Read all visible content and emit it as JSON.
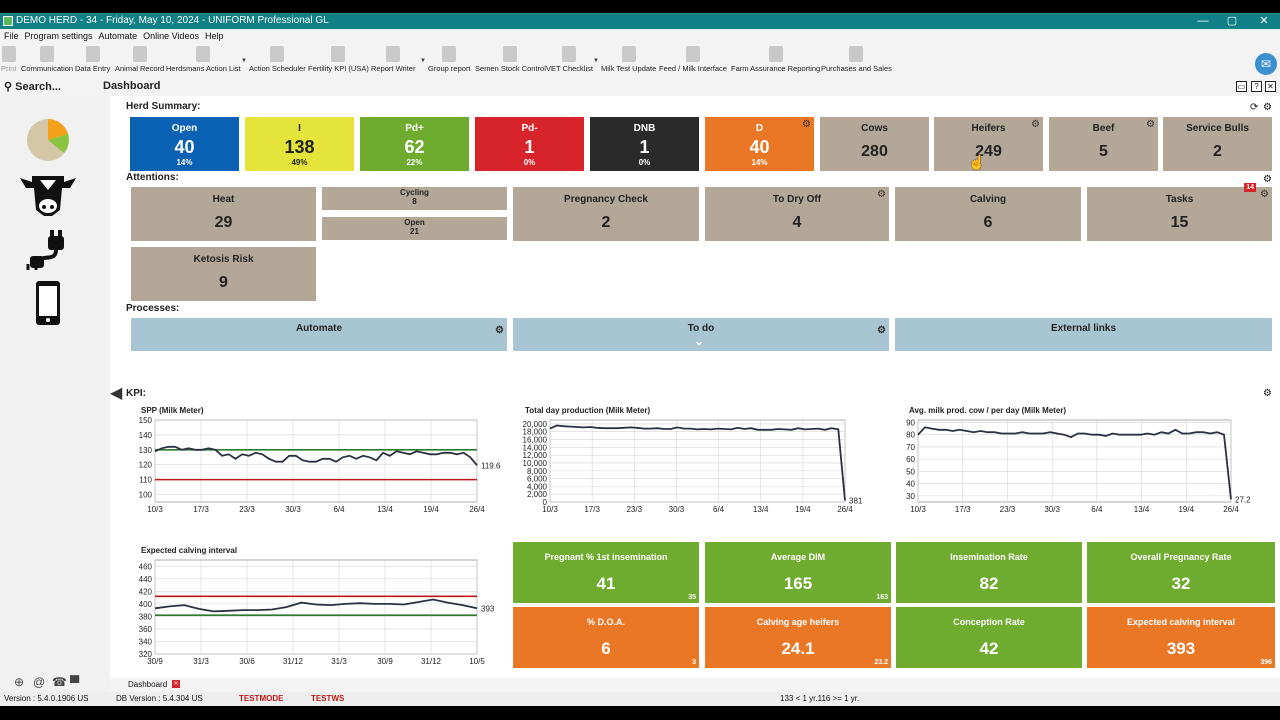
{
  "window": {
    "title": "DEMO HERD - 34 - Friday, May 10, 2024 - UNIFORM Professional GL",
    "controls": [
      "—",
      "▢",
      "❐",
      "✕"
    ]
  },
  "menu": [
    "File",
    "Program settings",
    "Automate",
    "Online Videos",
    "Help"
  ],
  "toolbar": [
    {
      "label": "Print",
      "icon": "printer-icon"
    },
    {
      "label": "Communication",
      "icon": "antenna-icon"
    },
    {
      "label": "Data Entry",
      "icon": "cow-icon"
    },
    {
      "label": "Animal Record",
      "icon": "cow-record-icon"
    },
    {
      "label": "Herdsmans Action List",
      "icon": "document-icon"
    },
    {
      "label": "Action Scheduler",
      "icon": "clock-icon"
    },
    {
      "label": "Fertility KPI (USA)",
      "icon": "heart-icon"
    },
    {
      "label": "Report Writer",
      "icon": "printer-icon"
    },
    {
      "label": "Group report",
      "icon": "group-icon"
    },
    {
      "label": "Semen Stock Control",
      "icon": "canister-icon"
    },
    {
      "label": "VET Checklist",
      "icon": "vet-icon"
    },
    {
      "label": "Milk Test Update",
      "icon": "milk-icon"
    },
    {
      "label": "Feed / Milk Interface",
      "icon": "feed-icon"
    },
    {
      "label": "Farm Assurance Reporting",
      "icon": "farm-icon"
    },
    {
      "label": "Purchases and Sales",
      "icon": "trade-icon"
    }
  ],
  "search": {
    "label": "Search..."
  },
  "page_title": "Dashboard",
  "sections": {
    "herd": "Herd Summary:",
    "attentions": "Attentions:",
    "processes": "Processes:",
    "kpi": "KPI:"
  },
  "herd_tiles": [
    {
      "title": "Open",
      "value": "40",
      "pct": "14%",
      "color": "#0b62b5"
    },
    {
      "title": "I",
      "value": "138",
      "pct": "49%",
      "color": "#e4e43a"
    },
    {
      "title": "Pd+",
      "value": "62",
      "pct": "22%",
      "color": "#6fab2e"
    },
    {
      "title": "Pd-",
      "value": "1",
      "pct": "0%",
      "color": "#d7242a"
    },
    {
      "title": "DNB",
      "value": "1",
      "pct": "0%",
      "color": "#2a2a2a"
    },
    {
      "title": "D",
      "value": "40",
      "pct": "14%",
      "color": "#e97726"
    },
    {
      "title": "Cows",
      "value": "280"
    },
    {
      "title": "Heifers",
      "value": "249"
    },
    {
      "title": "Beef",
      "value": "5"
    },
    {
      "title": "Service Bulls",
      "value": "2"
    }
  ],
  "attentions": {
    "heat": {
      "title": "Heat",
      "value": "29"
    },
    "cycling": {
      "title": "Cycling",
      "value": "8"
    },
    "open": {
      "title": "Open",
      "value": "21"
    },
    "pregnancy_check": {
      "title": "Pregnancy Check",
      "value": "2"
    },
    "to_dry_off": {
      "title": "To Dry Off",
      "value": "4"
    },
    "calving": {
      "title": "Calving",
      "value": "6"
    },
    "tasks": {
      "title": "Tasks",
      "value": "15",
      "badge": "14"
    },
    "ketosis": {
      "title": "Ketosis Risk",
      "value": "9"
    }
  },
  "processes": [
    "Automate",
    "To do",
    "External links"
  ],
  "kpi_tiles": [
    {
      "title": "Pregnant % 1st insemination",
      "value": "41",
      "sub": "35",
      "color": "green"
    },
    {
      "title": "Average DIM",
      "value": "165",
      "sub": "163",
      "color": "green"
    },
    {
      "title": "Insemination Rate",
      "value": "82",
      "sub": "",
      "color": "green"
    },
    {
      "title": "Overall Pregnancy Rate",
      "value": "32",
      "sub": "",
      "color": "green"
    },
    {
      "title": "% D.O.A.",
      "value": "6",
      "sub": "3",
      "color": "orange"
    },
    {
      "title": "Calving age heifers",
      "value": "24.1",
      "sub": "23.2",
      "color": "orange"
    },
    {
      "title": "Conception Rate",
      "value": "42",
      "sub": "",
      "color": "green"
    },
    {
      "title": "Expected calving interval",
      "value": "393",
      "sub": "396",
      "color": "orange"
    }
  ],
  "chart_data": [
    {
      "type": "line",
      "title": "SPP (Milk Meter)",
      "ylim": [
        95,
        150
      ],
      "yticks": [
        100,
        110,
        120,
        130,
        140,
        150
      ],
      "xticks": [
        "10/3",
        "17/3",
        "23/3",
        "30/3",
        "6/4",
        "13/4",
        "19/4",
        "26/4"
      ],
      "values": [
        129,
        131,
        132,
        132,
        130,
        131,
        130,
        130,
        131,
        130,
        126,
        127,
        124,
        127,
        126,
        128,
        127,
        124,
        122,
        122,
        126,
        126,
        123,
        122,
        122,
        124,
        124,
        122,
        125,
        126,
        124,
        126,
        125,
        123,
        128,
        126,
        129,
        128,
        127,
        129,
        128,
        127,
        127,
        128,
        128,
        127,
        128,
        125,
        119.6
      ],
      "reference_lines": [
        {
          "value": 130,
          "color": "#2f7a2f"
        },
        {
          "value": 110,
          "color": "#c01818"
        }
      ],
      "end_label": "119.6"
    },
    {
      "type": "line",
      "title": "Total day production (Milk Meter)",
      "ylim": [
        0,
        21000
      ],
      "yticks": [
        0,
        2000,
        4000,
        6000,
        8000,
        10000,
        12000,
        14000,
        16000,
        18000,
        20000
      ],
      "ytick_labels": [
        "0",
        "2,000",
        "4,000",
        "6,000",
        "8,000",
        "10,000",
        "12,000",
        "14,000",
        "16,000",
        "18,000",
        "20,000"
      ],
      "xticks": [
        "10/3",
        "17/3",
        "23/3",
        "30/3",
        "6/4",
        "13/4",
        "19/4",
        "26/4"
      ],
      "values": [
        18800,
        19600,
        19400,
        19300,
        19200,
        19100,
        19200,
        19000,
        18900,
        18900,
        18900,
        19000,
        19100,
        19000,
        18800,
        18800,
        18900,
        18700,
        18700,
        19100,
        18800,
        18800,
        18600,
        18700,
        18600,
        18800,
        18700,
        18600,
        19000,
        18700,
        18900,
        18500,
        18500,
        18500,
        18700,
        18600,
        18500,
        18900,
        18600,
        18700,
        18800,
        18500,
        18900,
        18600,
        381
      ],
      "end_label": "381"
    },
    {
      "type": "line",
      "title": "Avg. milk prod. cow / per day (Milk Meter)",
      "ylim": [
        25,
        92
      ],
      "yticks": [
        30,
        40,
        50,
        60,
        70,
        80,
        90
      ],
      "xticks": [
        "10/3",
        "17/3",
        "23/3",
        "30/3",
        "6/4",
        "13/4",
        "19/4",
        "26/4"
      ],
      "values": [
        80,
        86,
        85,
        84,
        84,
        83,
        84,
        83,
        82,
        83,
        82,
        82,
        81,
        81,
        81,
        82,
        81,
        81,
        81,
        82,
        81,
        80,
        78,
        81,
        81,
        80,
        80,
        79,
        81,
        80,
        80,
        80,
        80,
        81,
        80,
        82,
        81,
        84,
        81,
        81,
        82,
        82,
        81,
        82,
        80,
        27.2
      ],
      "end_label": "27.2"
    },
    {
      "type": "line",
      "title": "Expected calving interval",
      "ylim": [
        320,
        470
      ],
      "yticks": [
        320,
        340,
        360,
        380,
        400,
        420,
        440,
        460
      ],
      "xticks": [
        "30/9",
        "31/3",
        "30/6",
        "31/12",
        "31/3",
        "30/9",
        "31/12",
        "10/5"
      ],
      "values": [
        393,
        396,
        398,
        392,
        388,
        389,
        390,
        390,
        391,
        395,
        402,
        399,
        398,
        400,
        401,
        400,
        400,
        399,
        403,
        407,
        402,
        398,
        393
      ],
      "reference_lines": [
        {
          "value": 412,
          "color": "#c01818"
        },
        {
          "value": 382,
          "color": "#2f7a2f"
        }
      ],
      "end_label": "393"
    }
  ],
  "bottom_tab": "Dashboard",
  "status": {
    "version": "Version : 5.4.0.1906 US",
    "db_version": "DB Version : 5.4.304 US",
    "testmode": "TESTMODE",
    "testws": "TESTWS",
    "center": "133 < 1 yr.116 >= 1 yr."
  }
}
